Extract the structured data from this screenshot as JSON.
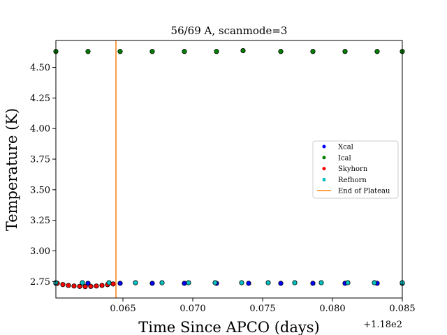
{
  "chart_data": {
    "type": "scatter",
    "title": "56/69 A, scanmode=3",
    "xlabel": "Time Since APCO (days)",
    "ylabel": "Temperature (K)",
    "x_offset_label": "+1.18e2",
    "xlim": [
      118.0602,
      118.085
    ],
    "ylim": [
      2.615,
      4.72
    ],
    "x_ticks": [
      118.065,
      118.07,
      118.075,
      118.08,
      118.085
    ],
    "x_tick_labels": [
      "0.065",
      "0.070",
      "0.075",
      "0.080",
      "0.085"
    ],
    "y_ticks": [
      2.75,
      3.0,
      3.25,
      3.5,
      3.75,
      4.0,
      4.25,
      4.5
    ],
    "y_tick_labels": [
      "2.75",
      "3.00",
      "3.25",
      "3.50",
      "3.75",
      "4.00",
      "4.25",
      "4.50"
    ],
    "grid": false,
    "legend_position": "center-right",
    "series": [
      {
        "name": "Xcal",
        "color": "#0000ff",
        "x": [
          118.0602,
          118.0625,
          118.0648,
          118.0671,
          118.0694,
          118.0717,
          118.074,
          118.0763,
          118.0786,
          118.0809,
          118.0832,
          118.085
        ],
        "y": [
          2.735,
          2.735,
          2.735,
          2.735,
          2.735,
          2.735,
          2.735,
          2.735,
          2.735,
          2.735,
          2.735,
          2.735
        ]
      },
      {
        "name": "Ical",
        "color": "#008000",
        "x": [
          118.0602,
          118.0625,
          118.0648,
          118.0671,
          118.0694,
          118.0717,
          118.0736,
          118.0763,
          118.0786,
          118.0809,
          118.0832,
          118.085
        ],
        "y": [
          4.63,
          4.63,
          4.63,
          4.63,
          4.63,
          4.63,
          4.637,
          4.63,
          4.63,
          4.63,
          4.63,
          4.63
        ]
      },
      {
        "name": "Skyhorn",
        "color": "#ff0000",
        "x": [
          118.0603,
          118.0607,
          118.0611,
          118.0615,
          118.0619,
          118.0623,
          118.0627,
          118.0631,
          118.0635,
          118.0639,
          118.0643
        ],
        "y": [
          2.735,
          2.725,
          2.718,
          2.713,
          2.71,
          2.708,
          2.71,
          2.713,
          2.718,
          2.724,
          2.73
        ]
      },
      {
        "name": "Refhorn",
        "color": "#00bfbf",
        "x": [
          118.0602,
          118.0621,
          118.064,
          118.0659,
          118.0678,
          118.0697,
          118.0716,
          118.0735,
          118.0754,
          118.0773,
          118.0792,
          118.0811,
          118.083,
          118.085
        ],
        "y": [
          2.74,
          2.74,
          2.74,
          2.74,
          2.74,
          2.74,
          2.74,
          2.74,
          2.74,
          2.74,
          2.74,
          2.74,
          2.74,
          2.74
        ]
      },
      {
        "name": "End of Plateau",
        "color": "#ff7f0e",
        "type": "vline",
        "x": 118.0645
      }
    ]
  }
}
